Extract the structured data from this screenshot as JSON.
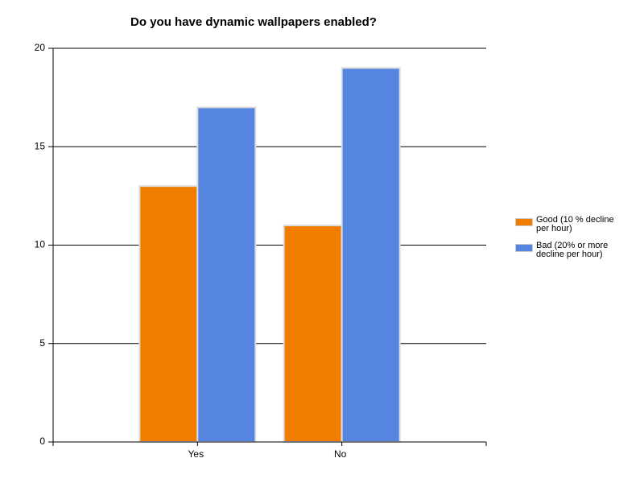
{
  "chart_data": {
    "type": "bar",
    "title": "Do you have dynamic wallpapers enabled?",
    "categories": [
      "Yes",
      "No"
    ],
    "series": [
      {
        "name": "Good (10 % decline per hour)",
        "color": "#f07d00",
        "values": [
          13,
          11
        ]
      },
      {
        "name": "Bad (20% or more decline per hour)",
        "color": "#5585e0",
        "values": [
          17,
          19
        ]
      }
    ],
    "ylim": [
      0,
      20
    ],
    "yticks": [
      0,
      5,
      10,
      15,
      20
    ],
    "grid": true,
    "legend": "right"
  }
}
